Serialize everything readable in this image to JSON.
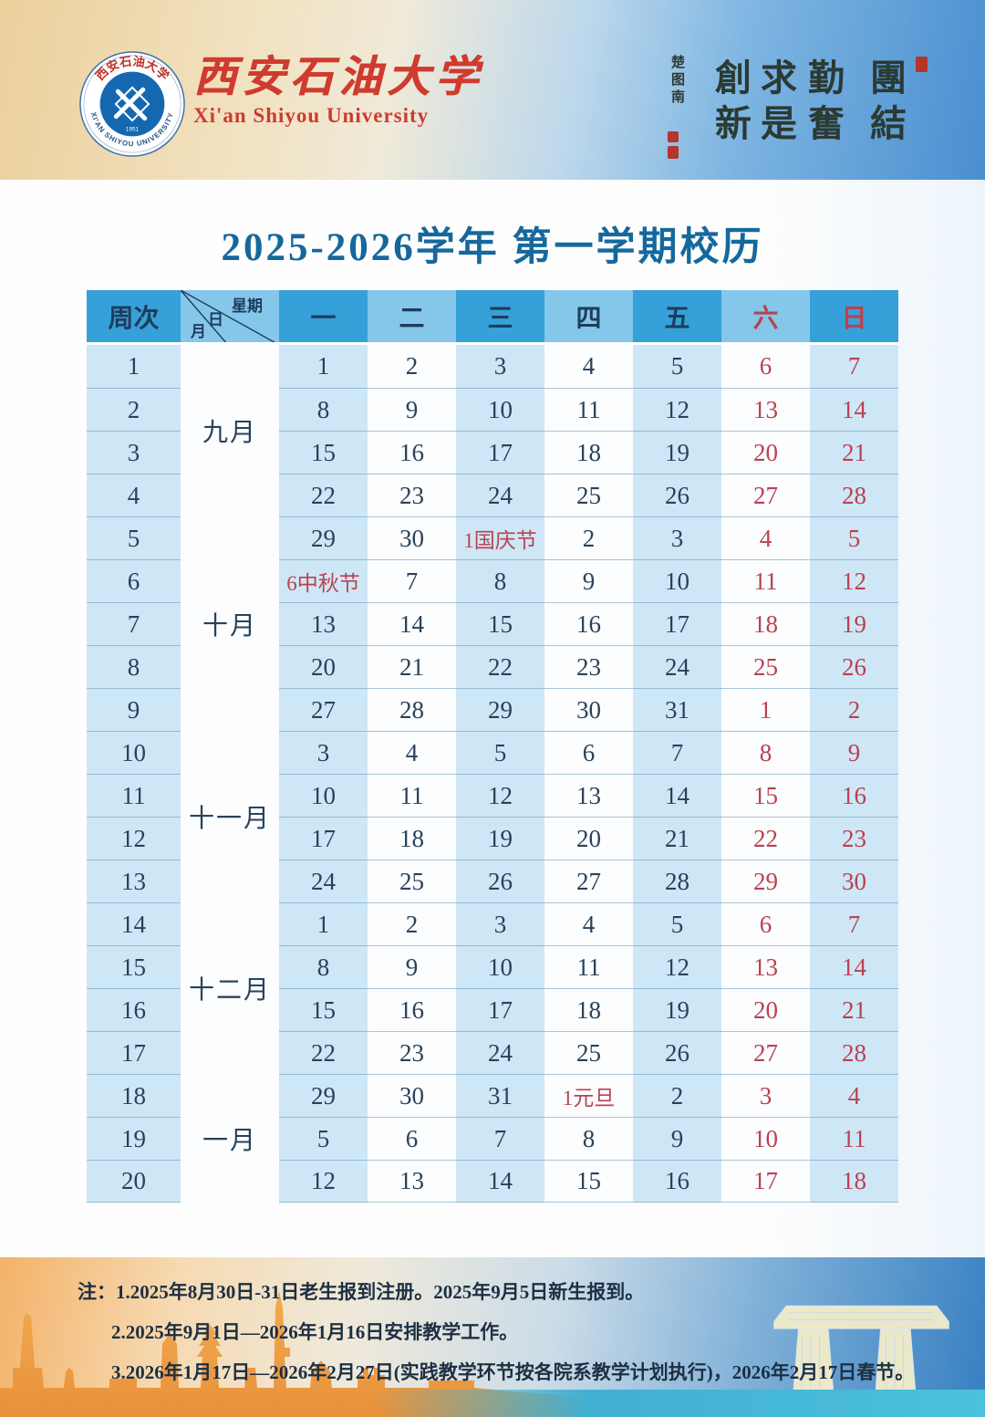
{
  "masthead": {
    "logo": {
      "arc_top": "西安石油大学",
      "arc_bottom": "XI'AN SHIYOU UNIVERSITY",
      "year": "1951"
    },
    "university_name_zh": "西安石油大学",
    "university_name_en": "Xi'an Shiyou University",
    "motto": {
      "columns": [
        "團結",
        "勤奮",
        "求是",
        "創新"
      ],
      "signature": "楚图南"
    }
  },
  "title": "2025-2026学年 第一学期校历",
  "calendar": {
    "corner": {
      "week_label": "周次",
      "weekday_label": "星期",
      "day_label": "日",
      "month_label": "月"
    },
    "day_headers": [
      {
        "label": "一",
        "red": false
      },
      {
        "label": "二",
        "red": false
      },
      {
        "label": "三",
        "red": false
      },
      {
        "label": "四",
        "red": false
      },
      {
        "label": "五",
        "red": false
      },
      {
        "label": "六",
        "red": true
      },
      {
        "label": "日",
        "red": true
      }
    ],
    "months": [
      {
        "label": "九月",
        "weeks": 4
      },
      {
        "label": "十月",
        "weeks": 5
      },
      {
        "label": "十一月",
        "weeks": 4
      },
      {
        "label": "十二月",
        "weeks": 4
      },
      {
        "label": "一月",
        "weeks": 3
      }
    ],
    "weeks": [
      {
        "num": "1",
        "days": [
          {
            "t": "1"
          },
          {
            "t": "2"
          },
          {
            "t": "3"
          },
          {
            "t": "4"
          },
          {
            "t": "5"
          },
          {
            "t": "6",
            "red": true
          },
          {
            "t": "7",
            "red": true
          }
        ]
      },
      {
        "num": "2",
        "days": [
          {
            "t": "8"
          },
          {
            "t": "9"
          },
          {
            "t": "10"
          },
          {
            "t": "11"
          },
          {
            "t": "12"
          },
          {
            "t": "13",
            "red": true
          },
          {
            "t": "14",
            "red": true
          }
        ]
      },
      {
        "num": "3",
        "days": [
          {
            "t": "15"
          },
          {
            "t": "16"
          },
          {
            "t": "17"
          },
          {
            "t": "18"
          },
          {
            "t": "19"
          },
          {
            "t": "20",
            "red": true
          },
          {
            "t": "21",
            "red": true
          }
        ]
      },
      {
        "num": "4",
        "days": [
          {
            "t": "22"
          },
          {
            "t": "23"
          },
          {
            "t": "24"
          },
          {
            "t": "25"
          },
          {
            "t": "26"
          },
          {
            "t": "27",
            "red": true
          },
          {
            "t": "28",
            "red": true
          }
        ]
      },
      {
        "num": "5",
        "days": [
          {
            "t": "29"
          },
          {
            "t": "30"
          },
          {
            "t": "1国庆节",
            "red": true,
            "holiday": true
          },
          {
            "t": "2"
          },
          {
            "t": "3"
          },
          {
            "t": "4",
            "red": true
          },
          {
            "t": "5",
            "red": true
          }
        ]
      },
      {
        "num": "6",
        "days": [
          {
            "t": "6中秋节",
            "red": true,
            "holiday": true
          },
          {
            "t": "7"
          },
          {
            "t": "8"
          },
          {
            "t": "9"
          },
          {
            "t": "10"
          },
          {
            "t": "11",
            "red": true
          },
          {
            "t": "12",
            "red": true
          }
        ]
      },
      {
        "num": "7",
        "days": [
          {
            "t": "13"
          },
          {
            "t": "14"
          },
          {
            "t": "15"
          },
          {
            "t": "16"
          },
          {
            "t": "17"
          },
          {
            "t": "18",
            "red": true
          },
          {
            "t": "19",
            "red": true
          }
        ]
      },
      {
        "num": "8",
        "days": [
          {
            "t": "20"
          },
          {
            "t": "21"
          },
          {
            "t": "22"
          },
          {
            "t": "23"
          },
          {
            "t": "24"
          },
          {
            "t": "25",
            "red": true
          },
          {
            "t": "26",
            "red": true
          }
        ]
      },
      {
        "num": "9",
        "days": [
          {
            "t": "27"
          },
          {
            "t": "28"
          },
          {
            "t": "29"
          },
          {
            "t": "30"
          },
          {
            "t": "31"
          },
          {
            "t": "1",
            "red": true
          },
          {
            "t": "2",
            "red": true
          }
        ]
      },
      {
        "num": "10",
        "days": [
          {
            "t": "3"
          },
          {
            "t": "4"
          },
          {
            "t": "5"
          },
          {
            "t": "6"
          },
          {
            "t": "7"
          },
          {
            "t": "8",
            "red": true
          },
          {
            "t": "9",
            "red": true
          }
        ]
      },
      {
        "num": "11",
        "days": [
          {
            "t": "10"
          },
          {
            "t": "11"
          },
          {
            "t": "12"
          },
          {
            "t": "13"
          },
          {
            "t": "14"
          },
          {
            "t": "15",
            "red": true
          },
          {
            "t": "16",
            "red": true
          }
        ]
      },
      {
        "num": "12",
        "days": [
          {
            "t": "17"
          },
          {
            "t": "18"
          },
          {
            "t": "19"
          },
          {
            "t": "20"
          },
          {
            "t": "21"
          },
          {
            "t": "22",
            "red": true
          },
          {
            "t": "23",
            "red": true
          }
        ]
      },
      {
        "num": "13",
        "days": [
          {
            "t": "24"
          },
          {
            "t": "25"
          },
          {
            "t": "26"
          },
          {
            "t": "27"
          },
          {
            "t": "28"
          },
          {
            "t": "29",
            "red": true
          },
          {
            "t": "30",
            "red": true
          }
        ]
      },
      {
        "num": "14",
        "days": [
          {
            "t": "1"
          },
          {
            "t": "2"
          },
          {
            "t": "3"
          },
          {
            "t": "4"
          },
          {
            "t": "5"
          },
          {
            "t": "6",
            "red": true
          },
          {
            "t": "7",
            "red": true
          }
        ]
      },
      {
        "num": "15",
        "days": [
          {
            "t": "8"
          },
          {
            "t": "9"
          },
          {
            "t": "10"
          },
          {
            "t": "11"
          },
          {
            "t": "12"
          },
          {
            "t": "13",
            "red": true
          },
          {
            "t": "14",
            "red": true
          }
        ]
      },
      {
        "num": "16",
        "days": [
          {
            "t": "15"
          },
          {
            "t": "16"
          },
          {
            "t": "17"
          },
          {
            "t": "18"
          },
          {
            "t": "19"
          },
          {
            "t": "20",
            "red": true
          },
          {
            "t": "21",
            "red": true
          }
        ]
      },
      {
        "num": "17",
        "days": [
          {
            "t": "22"
          },
          {
            "t": "23"
          },
          {
            "t": "24"
          },
          {
            "t": "25"
          },
          {
            "t": "26"
          },
          {
            "t": "27",
            "red": true
          },
          {
            "t": "28",
            "red": true
          }
        ]
      },
      {
        "num": "18",
        "days": [
          {
            "t": "29"
          },
          {
            "t": "30"
          },
          {
            "t": "31"
          },
          {
            "t": "1元旦",
            "red": true,
            "holiday": true
          },
          {
            "t": "2"
          },
          {
            "t": "3",
            "red": true
          },
          {
            "t": "4",
            "red": true
          }
        ]
      },
      {
        "num": "19",
        "days": [
          {
            "t": "5"
          },
          {
            "t": "6"
          },
          {
            "t": "7"
          },
          {
            "t": "8"
          },
          {
            "t": "9"
          },
          {
            "t": "10",
            "red": true
          },
          {
            "t": "11",
            "red": true
          }
        ]
      },
      {
        "num": "20",
        "days": [
          {
            "t": "12"
          },
          {
            "t": "13"
          },
          {
            "t": "14"
          },
          {
            "t": "15"
          },
          {
            "t": "16"
          },
          {
            "t": "17",
            "red": true
          },
          {
            "t": "18",
            "red": true
          }
        ]
      }
    ]
  },
  "notes": [
    "注：1.2025年8月30日-31日老生报到注册。2025年9月5日新生报到。",
    "2.2025年9月1日—2026年1月16日安排教学工作。",
    "3.2026年1月17日—2026年2月27日(实践教学环节按各院系教学计划执行)，2026年2月17日春节。"
  ],
  "colors": {
    "title": "#15689d",
    "header_blue": "#36a0d8",
    "header_light_blue": "#84c7ea",
    "cell_blue": "#cee7f6",
    "weekend_red": "#bb4150",
    "university_red": "#cf3b2e",
    "skyline_orange": "#efa14a"
  }
}
